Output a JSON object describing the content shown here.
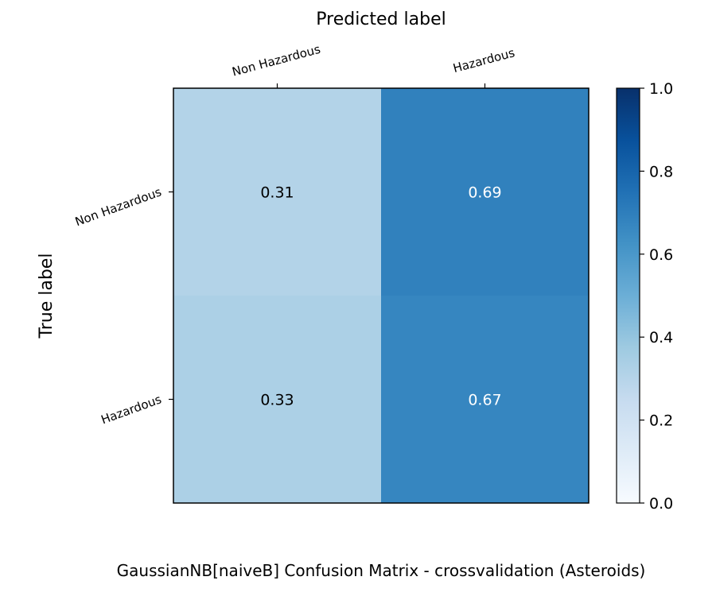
{
  "chart_data": {
    "type": "heatmap",
    "title": "",
    "caption": "GaussianNB[naiveB] Confusion Matrix - crossvalidation (Asteroids)",
    "xlabel": "Predicted label",
    "ylabel": "True label",
    "x_categories": [
      "Non Hazardous",
      "Hazardous"
    ],
    "y_categories": [
      "Non Hazardous",
      "Hazardous"
    ],
    "values": [
      [
        0.31,
        0.69
      ],
      [
        0.33,
        0.67
      ]
    ],
    "value_labels": [
      [
        "0.31",
        "0.69"
      ],
      [
        "0.33",
        "0.67"
      ]
    ],
    "colorbar": {
      "range": [
        0,
        1
      ],
      "ticks": [
        0.0,
        0.2,
        0.4,
        0.6,
        0.8,
        1.0
      ],
      "tick_labels": [
        "0.0",
        "0.2",
        "0.4",
        "0.6",
        "0.8",
        "1.0"
      ],
      "colormap": "Blues"
    },
    "x_axis_position": "top",
    "grid": false
  }
}
